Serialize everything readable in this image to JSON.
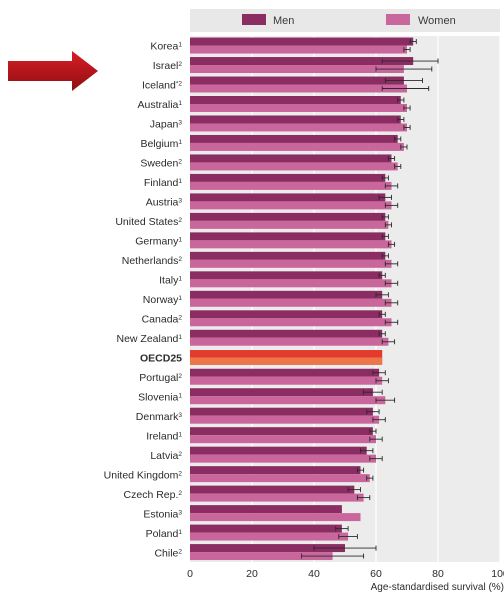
{
  "chart_data": {
    "type": "bar",
    "orientation": "horizontal",
    "xlabel": "Age-standardised survival (%)",
    "xlim": [
      0,
      100
    ],
    "xticks": [
      0,
      20,
      40,
      60,
      80,
      100
    ],
    "grid": true,
    "legend_position": "top",
    "highlight_category": "OECD25",
    "categories": [
      {
        "label": "Korea",
        "sup": "1"
      },
      {
        "label": "Israel",
        "sup": "2"
      },
      {
        "label": "Iceland",
        "sup": "*2"
      },
      {
        "label": "Australia",
        "sup": "1"
      },
      {
        "label": "Japan",
        "sup": "3"
      },
      {
        "label": "Belgium",
        "sup": "1"
      },
      {
        "label": "Sweden",
        "sup": "2"
      },
      {
        "label": "Finland",
        "sup": "1"
      },
      {
        "label": "Austria",
        "sup": "3"
      },
      {
        "label": "United States",
        "sup": "2"
      },
      {
        "label": "Germany",
        "sup": "1"
      },
      {
        "label": "Netherlands",
        "sup": "2"
      },
      {
        "label": "Italy",
        "sup": "1"
      },
      {
        "label": "Norway",
        "sup": "1"
      },
      {
        "label": "Canada",
        "sup": "2"
      },
      {
        "label": "New Zealand",
        "sup": "1"
      },
      {
        "label": "OECD25",
        "sup": ""
      },
      {
        "label": "Portugal",
        "sup": "2"
      },
      {
        "label": "Slovenia",
        "sup": "1"
      },
      {
        "label": "Denmark",
        "sup": "3"
      },
      {
        "label": "Ireland",
        "sup": "1"
      },
      {
        "label": "Latvia",
        "sup": "2"
      },
      {
        "label": "United Kingdom",
        "sup": "2"
      },
      {
        "label": "Czech Rep.",
        "sup": "2"
      },
      {
        "label": "Estonia",
        "sup": "3"
      },
      {
        "label": "Poland",
        "sup": "1"
      },
      {
        "label": "Chile",
        "sup": "2"
      }
    ],
    "series": [
      {
        "name": "Men",
        "color": "#8b2d63",
        "values": [
          72,
          72,
          69,
          68,
          68,
          67,
          65,
          63,
          63,
          63,
          63,
          63,
          62,
          62,
          62,
          62,
          62,
          61,
          59,
          59,
          59,
          57,
          55,
          53,
          49,
          49,
          50
        ],
        "ci": [
          [
            71,
            73
          ],
          [
            62,
            80
          ],
          [
            63,
            75
          ],
          [
            67,
            69
          ],
          [
            67,
            69
          ],
          [
            66,
            68
          ],
          [
            64,
            66
          ],
          [
            62,
            64
          ],
          [
            61,
            65
          ],
          [
            62,
            64
          ],
          [
            62,
            64
          ],
          [
            62,
            64
          ],
          [
            61,
            63
          ],
          [
            60,
            64
          ],
          [
            61,
            63
          ],
          [
            61,
            63
          ],
          [
            null,
            null
          ],
          [
            59,
            63
          ],
          [
            56,
            62
          ],
          [
            57,
            61
          ],
          [
            58,
            60
          ],
          [
            55,
            59
          ],
          [
            54,
            56
          ],
          [
            51,
            55
          ],
          [
            null,
            null
          ],
          [
            47,
            51
          ],
          [
            40,
            60
          ]
        ]
      },
      {
        "name": "Women",
        "color": "#c9669c",
        "values": [
          70,
          69,
          70,
          70,
          70,
          69,
          67,
          65,
          65,
          64,
          65,
          65,
          65,
          65,
          65,
          64,
          62,
          62,
          63,
          61,
          60,
          60,
          58,
          56,
          55,
          51,
          46
        ],
        "ci": [
          [
            69,
            71
          ],
          [
            60,
            78
          ],
          [
            62,
            77
          ],
          [
            69,
            71
          ],
          [
            69,
            71
          ],
          [
            68,
            70
          ],
          [
            66,
            68
          ],
          [
            63,
            67
          ],
          [
            63,
            67
          ],
          [
            63,
            65
          ],
          [
            64,
            66
          ],
          [
            63,
            67
          ],
          [
            63,
            67
          ],
          [
            63,
            67
          ],
          [
            63,
            67
          ],
          [
            62,
            66
          ],
          [
            null,
            null
          ],
          [
            60,
            64
          ],
          [
            60,
            66
          ],
          [
            59,
            63
          ],
          [
            58,
            62
          ],
          [
            58,
            62
          ],
          [
            57,
            59
          ],
          [
            54,
            58
          ],
          [
            null,
            null
          ],
          [
            48,
            54
          ],
          [
            36,
            56
          ]
        ]
      }
    ],
    "highlight": {
      "value": 62,
      "color": "#e23a2b"
    }
  },
  "annotation": {
    "type": "arrow",
    "color": "#c0141c",
    "points_to": "Israel"
  }
}
